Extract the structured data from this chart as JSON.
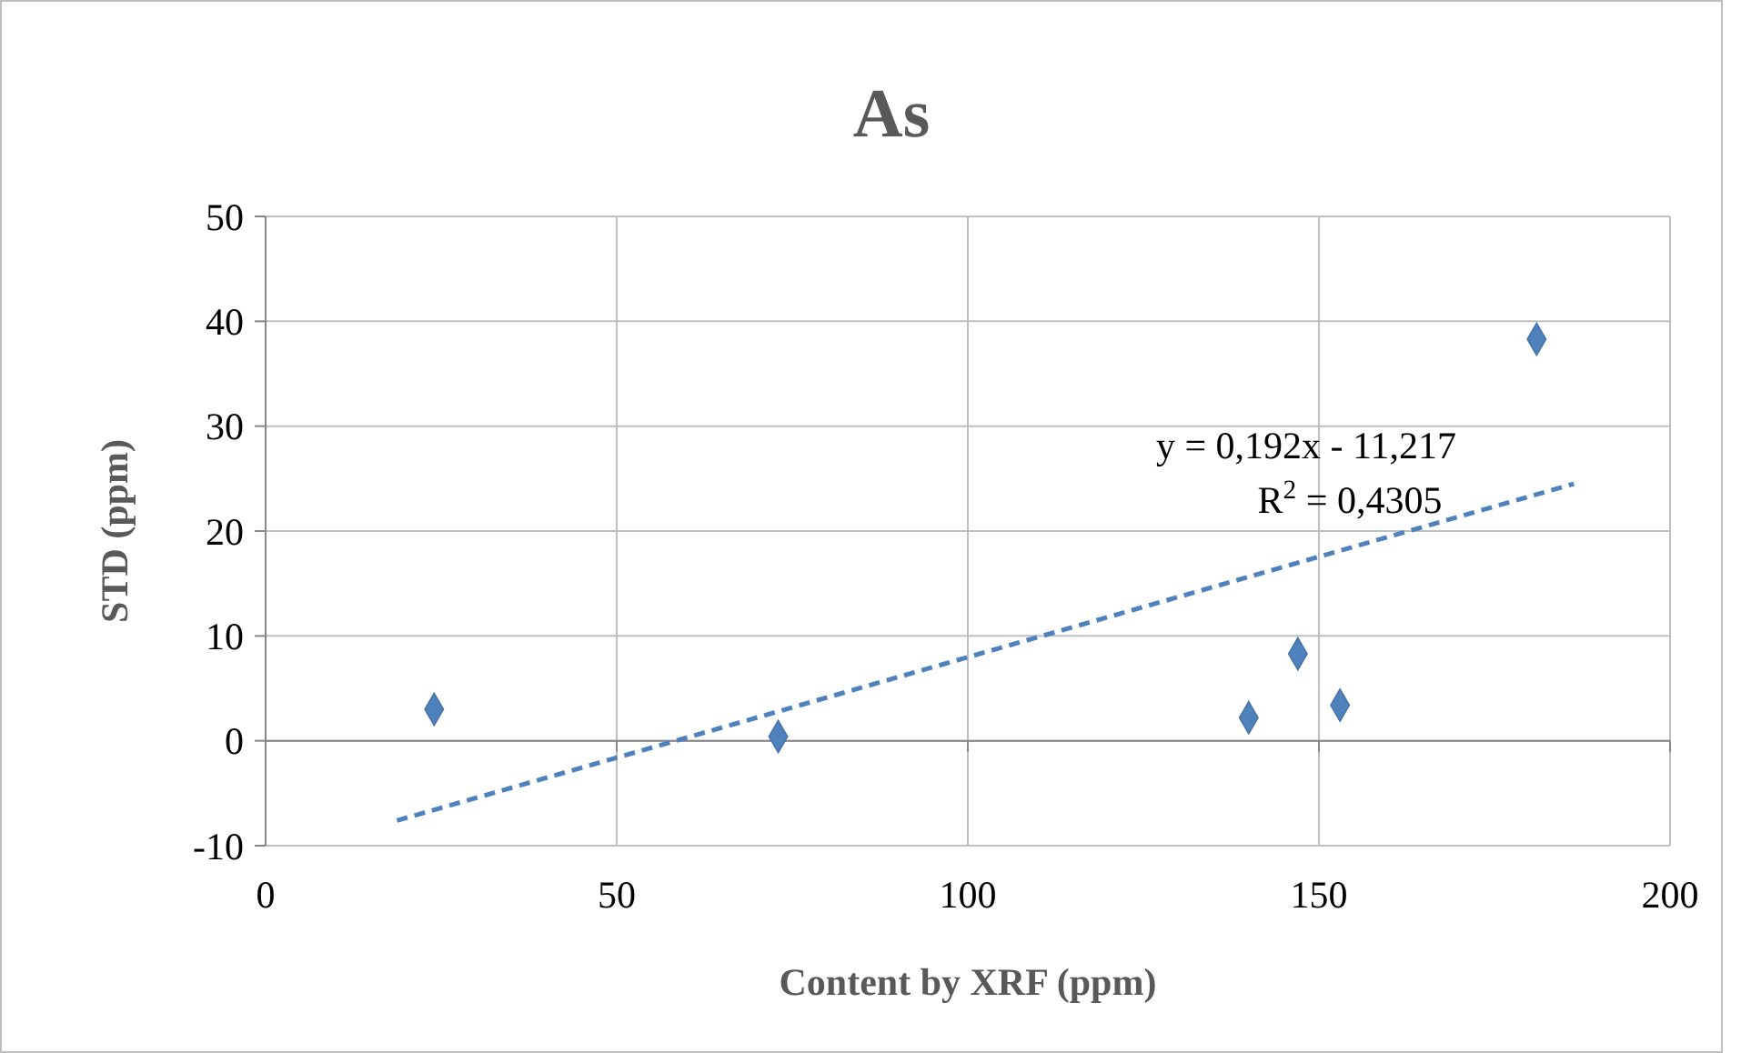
{
  "chart_data": {
    "type": "scatter",
    "title": "As",
    "xlabel": "Content by XRF (ppm)",
    "ylabel": "STD (ppm)",
    "xlim": [
      0,
      200
    ],
    "xticks": [
      0,
      50,
      100,
      150,
      200
    ],
    "ylim": [
      -10,
      50
    ],
    "yticks": [
      -10,
      0,
      10,
      20,
      30,
      40,
      50
    ],
    "grid": true,
    "marker": "diamond",
    "series": [
      {
        "color": "#4f81bd",
        "x": [
          24,
          73,
          140,
          147,
          153,
          181
        ],
        "values": [
          3,
          0.4,
          2.2,
          8.3,
          3.4,
          38.3
        ]
      },
      {
        "type": "line",
        "color": "#4f81bd",
        "line_style": "dashed",
        "marker": "none",
        "x": [
          18.7,
          186.3
        ],
        "values": [
          -7.6,
          24.5
        ]
      }
    ],
    "annotations": [
      "y = 0,192x - 11,217",
      "R$^{2}$ = 0,4305"
    ]
  }
}
